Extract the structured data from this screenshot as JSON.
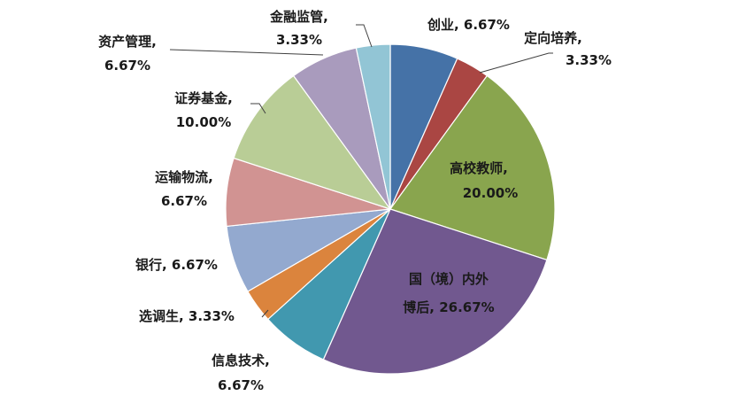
{
  "chart_data": {
    "type": "pie",
    "title": "",
    "start_angle_deg": 0,
    "direction": "clockwise",
    "legend": "none",
    "slices": [
      {
        "name": "创业",
        "value": 6.67,
        "label": "6.67%",
        "color": "#4572A7"
      },
      {
        "name": "定向培养",
        "value": 3.33,
        "label": "3.33%",
        "color": "#AA4643"
      },
      {
        "name": "高校教师",
        "value": 20.0,
        "label": "20.00%",
        "color": "#89A54E"
      },
      {
        "name": "国（境）内外博后",
        "name_lines": [
          "国（境）内外",
          "博后"
        ],
        "value": 26.67,
        "label": "26.67%",
        "color": "#71588F"
      },
      {
        "name": "信息技术",
        "value": 6.67,
        "label": "6.67%",
        "color": "#4198AF"
      },
      {
        "name": "选调生",
        "value": 3.33,
        "label": "3.33%",
        "color": "#DB843D"
      },
      {
        "name": "银行",
        "value": 6.67,
        "label": "6.67%",
        "color": "#93A9CF"
      },
      {
        "name": "运输物流",
        "value": 6.67,
        "label": "6.67%",
        "color": "#D19392"
      },
      {
        "name": "证券基金",
        "value": 10.0,
        "label": "10.00%",
        "color": "#B9CD96"
      },
      {
        "name": "资产管理",
        "value": 6.67,
        "label": "6.67%",
        "color": "#A99BBD"
      },
      {
        "name": "金融监管",
        "value": 3.33,
        "label": "3.33%",
        "color": "#92C5D5"
      }
    ]
  }
}
